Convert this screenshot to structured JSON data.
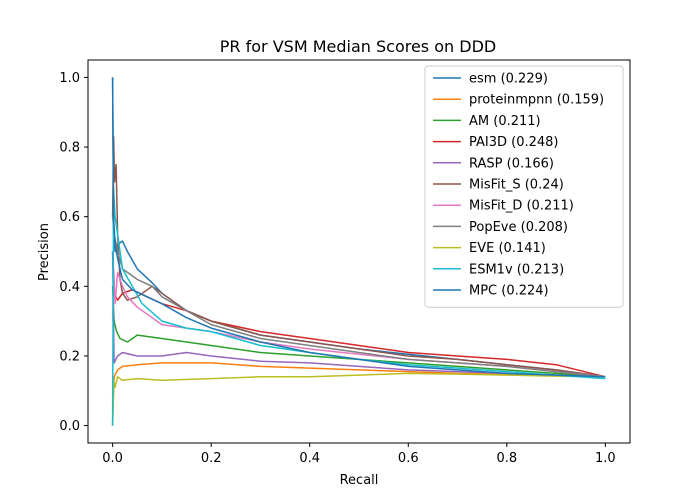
{
  "chart_data": {
    "type": "line",
    "title": "PR for VSM Median Scores on DDD",
    "xlabel": "Recall",
    "ylabel": "Precision",
    "xlim": [
      -0.05,
      1.05
    ],
    "ylim": [
      -0.05,
      1.05
    ],
    "xticks": [
      "0.0",
      "0.2",
      "0.4",
      "0.6",
      "0.8",
      "1.0"
    ],
    "yticks": [
      "0.0",
      "0.2",
      "0.4",
      "0.6",
      "0.8",
      "1.0"
    ],
    "grid": false,
    "legend_position": "top-right",
    "series": [
      {
        "name": "esm (0.229)",
        "color": "#1f77b4",
        "x": [
          0.0,
          0.002,
          0.005,
          0.01,
          0.02,
          0.03,
          0.05,
          0.08,
          0.1,
          0.15,
          0.2,
          0.3,
          0.4,
          0.5,
          0.6,
          0.7,
          0.8,
          0.9,
          1.0
        ],
        "y": [
          1.0,
          0.55,
          0.5,
          0.52,
          0.53,
          0.5,
          0.45,
          0.41,
          0.38,
          0.33,
          0.3,
          0.26,
          0.24,
          0.22,
          0.205,
          0.19,
          0.175,
          0.16,
          0.14
        ]
      },
      {
        "name": "proteinmpnn (0.159)",
        "color": "#ff7f0e",
        "x": [
          0.0,
          0.003,
          0.01,
          0.02,
          0.05,
          0.1,
          0.2,
          0.3,
          0.4,
          0.5,
          0.6,
          0.7,
          0.8,
          0.9,
          1.0
        ],
        "y": [
          0.0,
          0.14,
          0.16,
          0.17,
          0.175,
          0.18,
          0.18,
          0.17,
          0.165,
          0.16,
          0.155,
          0.15,
          0.148,
          0.145,
          0.14
        ]
      },
      {
        "name": "AM (0.211)",
        "color": "#2ca02c",
        "x": [
          0.0,
          0.003,
          0.008,
          0.015,
          0.03,
          0.05,
          0.1,
          0.2,
          0.3,
          0.4,
          0.5,
          0.6,
          0.7,
          0.8,
          0.9,
          1.0
        ],
        "y": [
          0.4,
          0.3,
          0.27,
          0.25,
          0.24,
          0.26,
          0.25,
          0.23,
          0.21,
          0.2,
          0.19,
          0.18,
          0.17,
          0.16,
          0.15,
          0.14
        ]
      },
      {
        "name": "PAI3D (0.248)",
        "color": "#d62728",
        "x": [
          0.0,
          0.003,
          0.01,
          0.02,
          0.04,
          0.07,
          0.1,
          0.15,
          0.2,
          0.3,
          0.4,
          0.5,
          0.6,
          0.7,
          0.8,
          0.9,
          1.0
        ],
        "y": [
          0.5,
          0.38,
          0.36,
          0.38,
          0.39,
          0.37,
          0.35,
          0.33,
          0.3,
          0.27,
          0.25,
          0.23,
          0.21,
          0.2,
          0.19,
          0.175,
          0.14
        ]
      },
      {
        "name": "RASP (0.166)",
        "color": "#9467bd",
        "x": [
          0.0,
          0.003,
          0.01,
          0.02,
          0.05,
          0.1,
          0.15,
          0.2,
          0.3,
          0.4,
          0.5,
          0.6,
          0.7,
          0.8,
          0.9,
          1.0
        ],
        "y": [
          0.5,
          0.18,
          0.2,
          0.21,
          0.2,
          0.2,
          0.21,
          0.2,
          0.185,
          0.18,
          0.17,
          0.16,
          0.155,
          0.15,
          0.145,
          0.14
        ]
      },
      {
        "name": "MisFit_S (0.24)",
        "color": "#8c564b",
        "x": [
          0.0,
          0.002,
          0.004,
          0.007,
          0.01,
          0.015,
          0.02,
          0.03,
          0.05,
          0.08,
          0.1,
          0.15,
          0.2,
          0.3,
          0.4,
          0.5,
          0.6,
          0.7,
          0.8,
          0.9,
          1.0
        ],
        "y": [
          0.6,
          0.83,
          0.7,
          0.75,
          0.55,
          0.42,
          0.38,
          0.36,
          0.37,
          0.4,
          0.38,
          0.33,
          0.3,
          0.26,
          0.24,
          0.22,
          0.2,
          0.19,
          0.175,
          0.16,
          0.14
        ]
      },
      {
        "name": "MisFit_D (0.211)",
        "color": "#e377c2",
        "x": [
          0.0,
          0.002,
          0.005,
          0.01,
          0.02,
          0.03,
          0.05,
          0.1,
          0.2,
          0.3,
          0.4,
          0.5,
          0.6,
          0.7,
          0.8,
          0.9,
          1.0
        ],
        "y": [
          0.3,
          0.45,
          0.35,
          0.44,
          0.4,
          0.37,
          0.34,
          0.29,
          0.27,
          0.24,
          0.22,
          0.205,
          0.19,
          0.18,
          0.17,
          0.155,
          0.14
        ]
      },
      {
        "name": "PopEve (0.208)",
        "color": "#7f7f7f",
        "x": [
          0.0,
          0.003,
          0.01,
          0.02,
          0.05,
          0.08,
          0.1,
          0.15,
          0.2,
          0.3,
          0.4,
          0.5,
          0.6,
          0.7,
          0.8,
          0.9,
          1.0
        ],
        "y": [
          0.6,
          0.55,
          0.5,
          0.45,
          0.42,
          0.4,
          0.37,
          0.33,
          0.29,
          0.25,
          0.23,
          0.21,
          0.19,
          0.18,
          0.17,
          0.155,
          0.14
        ]
      },
      {
        "name": "EVE (0.141)",
        "color": "#bcbd22",
        "x": [
          0.0,
          0.002,
          0.005,
          0.01,
          0.02,
          0.05,
          0.1,
          0.2,
          0.3,
          0.4,
          0.5,
          0.6,
          0.7,
          0.8,
          0.9,
          1.0
        ],
        "y": [
          0.0,
          0.13,
          0.11,
          0.14,
          0.13,
          0.135,
          0.13,
          0.135,
          0.14,
          0.14,
          0.145,
          0.15,
          0.148,
          0.145,
          0.142,
          0.14
        ]
      },
      {
        "name": "ESM1v (0.213)",
        "color": "#17becf",
        "x": [
          0.0,
          0.002,
          0.005,
          0.01,
          0.02,
          0.04,
          0.06,
          0.1,
          0.15,
          0.2,
          0.3,
          0.4,
          0.5,
          0.6,
          0.7,
          0.8,
          0.9,
          1.0
        ],
        "y": [
          0.0,
          0.68,
          0.6,
          0.55,
          0.45,
          0.4,
          0.35,
          0.3,
          0.28,
          0.27,
          0.23,
          0.21,
          0.19,
          0.175,
          0.165,
          0.155,
          0.145,
          0.135
        ]
      },
      {
        "name": "MPC (0.224)",
        "color": "#1f77b4",
        "x": [
          0.0,
          0.002,
          0.005,
          0.01,
          0.02,
          0.04,
          0.07,
          0.1,
          0.15,
          0.2,
          0.3,
          0.4,
          0.5,
          0.6,
          0.7,
          0.8,
          0.9,
          1.0
        ],
        "y": [
          1.0,
          0.6,
          0.52,
          0.48,
          0.42,
          0.39,
          0.37,
          0.35,
          0.31,
          0.28,
          0.24,
          0.21,
          0.19,
          0.17,
          0.16,
          0.15,
          0.145,
          0.14
        ]
      }
    ]
  }
}
